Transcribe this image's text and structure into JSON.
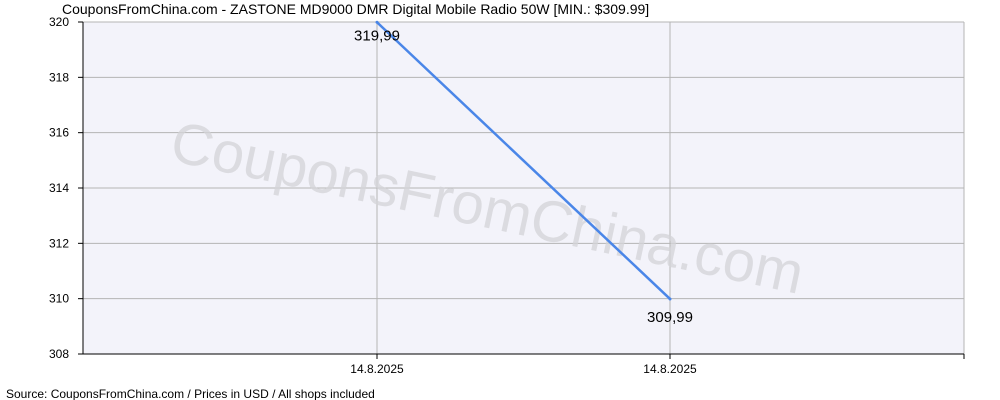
{
  "chart_data": {
    "type": "line",
    "title": "CouponsFromChina.com - ZASTONE MD9000 DMR Digital Mobile Radio 50W [MIN.: $309.99]",
    "watermark": "CouponsFromChina.com",
    "source": "Source:  CouponsFromChina.com / Prices in USD / All shops included",
    "categories": [
      "14.8.2025",
      "14.8.2025"
    ],
    "series": [
      {
        "values": [
          319.99,
          309.99
        ],
        "labels": [
          "319,99",
          "309,99"
        ]
      }
    ],
    "ylim": [
      308,
      320
    ],
    "yticks": [
      "308",
      "310",
      "312",
      "314",
      "316",
      "318",
      "320"
    ],
    "grid": true,
    "colors": {
      "line": "#4a86e8",
      "plot_bg": "#f3f3fa",
      "grid": "#b4b4b4",
      "axis": "#000000"
    }
  }
}
